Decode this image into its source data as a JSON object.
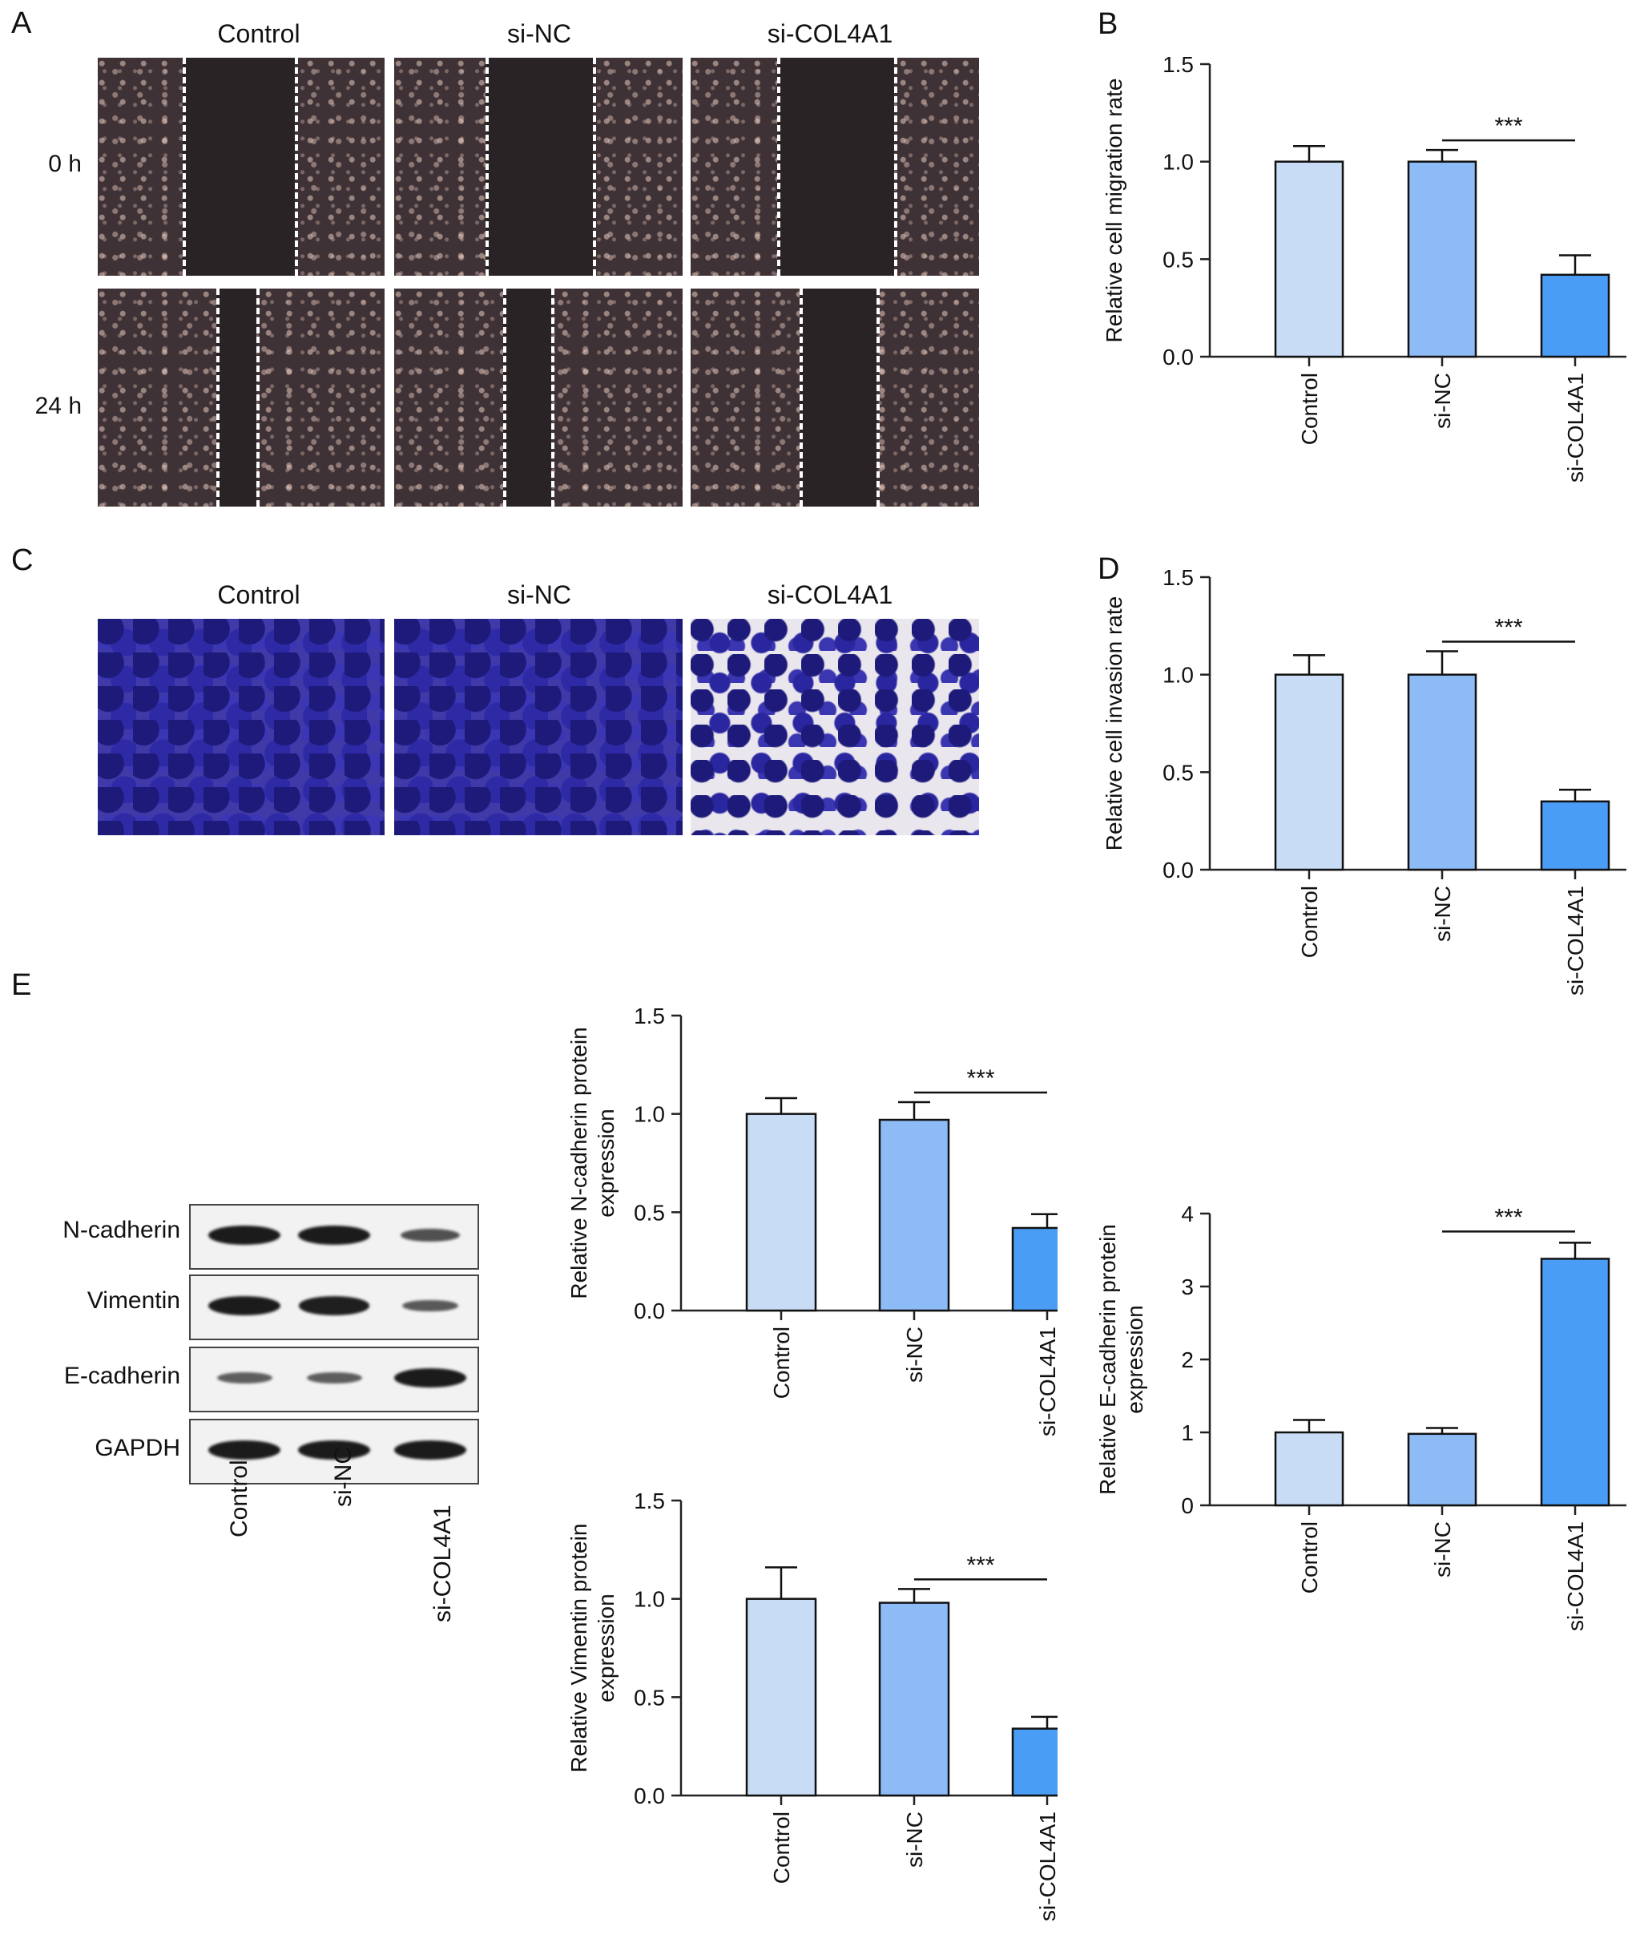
{
  "panels": {
    "A": {
      "letter": "A",
      "groups": [
        "Control",
        "si-NC",
        "si-COL4A1"
      ],
      "times": [
        "0 h",
        "24 h"
      ]
    },
    "C": {
      "letter": "C",
      "groups": [
        "Control",
        "si-NC",
        "si-COL4A1"
      ]
    },
    "E": {
      "letter": "E",
      "proteins": [
        "N-cadherin",
        "Vimentin",
        "E-cadherin",
        "GAPDH"
      ],
      "lanes": [
        "Control",
        "si-NC",
        "si-COL4A1"
      ],
      "band_intensity": {
        "N-cadherin": [
          1.0,
          1.0,
          0.45
        ],
        "Vimentin": [
          1.0,
          0.95,
          0.35
        ],
        "E-cadherin": [
          0.3,
          0.3,
          1.0
        ],
        "GAPDH": [
          1.0,
          1.0,
          1.0
        ]
      }
    }
  },
  "colors": {
    "control_bar": "#c9dcf6",
    "sinc_bar": "#8dbbf6",
    "sicol_bar": "#4a9df5"
  },
  "chart_data": [
    {
      "id": "B",
      "panel_letter": "B",
      "type": "bar",
      "categories": [
        "Control",
        "si-NC",
        "si-COL4A1"
      ],
      "values": [
        1.0,
        1.0,
        0.42
      ],
      "errors": [
        0.08,
        0.06,
        0.1
      ],
      "ylabel": [
        "Relative cell migration rate"
      ],
      "ylim": [
        0,
        1.5
      ],
      "yticks": [
        "0.0",
        "0.5",
        "1.0",
        "1.5"
      ],
      "significance": {
        "from": 1,
        "to": 2,
        "label": "***"
      }
    },
    {
      "id": "D",
      "panel_letter": "D",
      "type": "bar",
      "categories": [
        "Control",
        "si-NC",
        "si-COL4A1"
      ],
      "values": [
        1.0,
        1.0,
        0.35
      ],
      "errors": [
        0.1,
        0.12,
        0.06
      ],
      "ylabel": [
        "Relative cell invasion rate"
      ],
      "ylim": [
        0,
        1.5
      ],
      "yticks": [
        "0.0",
        "0.5",
        "1.0",
        "1.5"
      ],
      "significance": {
        "from": 1,
        "to": 2,
        "label": "***"
      }
    },
    {
      "id": "E1",
      "panel_letter": "",
      "type": "bar",
      "categories": [
        "Control",
        "si-NC",
        "si-COL4A1"
      ],
      "values": [
        1.0,
        0.97,
        0.42
      ],
      "errors": [
        0.08,
        0.09,
        0.07
      ],
      "ylabel": [
        "Relative N-cadherin protein",
        "expression"
      ],
      "ylim": [
        0,
        1.5
      ],
      "yticks": [
        "0.0",
        "0.5",
        "1.0",
        "1.5"
      ],
      "significance": {
        "from": 1,
        "to": 2,
        "label": "***"
      }
    },
    {
      "id": "E2",
      "panel_letter": "",
      "type": "bar",
      "categories": [
        "Control",
        "si-NC",
        "si-COL4A1"
      ],
      "values": [
        1.0,
        0.98,
        0.34
      ],
      "errors": [
        0.16,
        0.07,
        0.06
      ],
      "ylabel": [
        "Relative Vimentin protein",
        "expression"
      ],
      "ylim": [
        0,
        1.5
      ],
      "yticks": [
        "0.0",
        "0.5",
        "1.0",
        "1.5"
      ],
      "significance": {
        "from": 1,
        "to": 2,
        "label": "***"
      }
    },
    {
      "id": "E3",
      "panel_letter": "",
      "type": "bar",
      "categories": [
        "Control",
        "si-NC",
        "si-COL4A1"
      ],
      "values": [
        1.0,
        0.98,
        3.38
      ],
      "errors": [
        0.17,
        0.08,
        0.22
      ],
      "ylabel": [
        "Relative E-cadherin protein",
        "expression"
      ],
      "ylim": [
        0,
        4
      ],
      "yticks": [
        "0",
        "1",
        "2",
        "3",
        "4"
      ],
      "significance": {
        "from": 1,
        "to": 2,
        "label": "***"
      }
    }
  ]
}
